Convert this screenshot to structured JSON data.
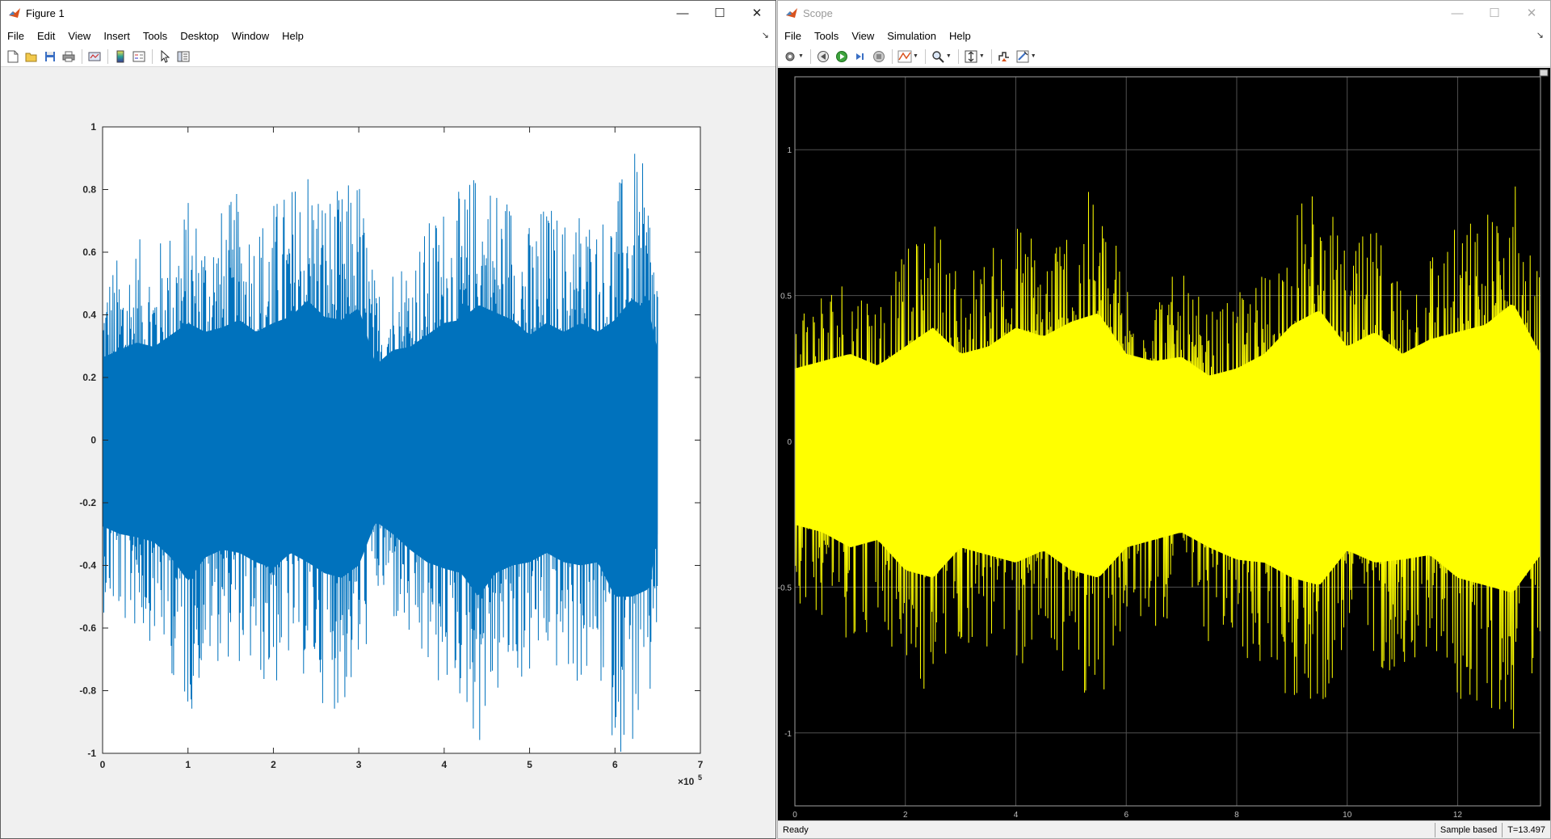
{
  "figure_window": {
    "title": "Figure 1",
    "menu": [
      "File",
      "Edit",
      "View",
      "Insert",
      "Tools",
      "Desktop",
      "Window",
      "Help"
    ],
    "toolbar_icons": [
      "new-figure-icon",
      "open-file-icon",
      "save-icon",
      "print-icon",
      "link-plot-icon",
      "colorbar-icon",
      "legend-icon",
      "edit-plot-icon",
      "property-inspector-icon"
    ],
    "controls": {
      "minimize": "—",
      "maximize": "☐",
      "close": "✕"
    }
  },
  "scope_window": {
    "title": "Scope",
    "menu": [
      "File",
      "Tools",
      "View",
      "Simulation",
      "Help"
    ],
    "toolbar_icons": [
      "settings-icon",
      "step-back-icon",
      "run-icon",
      "step-forward-icon",
      "stop-icon",
      "highlight-icon",
      "zoom-icon",
      "scale-axes-icon",
      "triggers-icon",
      "measurements-icon"
    ],
    "controls": {
      "minimize": "—",
      "maximize": "☐",
      "close": "✕"
    },
    "status": {
      "ready": "Ready",
      "mode": "Sample based",
      "time": "T=13.497"
    }
  },
  "chart_data": [
    {
      "type": "line",
      "title": "",
      "xlabel": "",
      "ylabel": "",
      "xlim": [
        0,
        7
      ],
      "ylim": [
        -1,
        1
      ],
      "x_exponent_label": "×10",
      "x_exponent": "5",
      "xticks": [
        "0",
        "1",
        "2",
        "3",
        "4",
        "5",
        "6",
        "7"
      ],
      "yticks": [
        "1",
        "0.8",
        "0.6",
        "0.4",
        "0.2",
        "0",
        "-0.2",
        "-0.4",
        "-0.6",
        "-0.8",
        "-1"
      ],
      "series": [
        {
          "color": "#0072bd",
          "x_range": [
            0,
            6.5
          ],
          "description_of_envelope": "dense noise"
        }
      ],
      "envelope": {
        "x": [
          0,
          0.2,
          0.4,
          0.6,
          0.8,
          1.0,
          1.2,
          1.4,
          1.6,
          1.8,
          2.0,
          2.2,
          2.4,
          2.6,
          2.8,
          3.0,
          3.2,
          3.4,
          3.6,
          3.8,
          4.0,
          4.2,
          4.4,
          4.6,
          4.8,
          5.0,
          5.2,
          5.4,
          5.6,
          5.8,
          6.0,
          6.2,
          6.4,
          6.5
        ],
        "upper": [
          0.55,
          0.6,
          0.65,
          0.62,
          0.7,
          0.78,
          0.72,
          0.75,
          0.8,
          0.72,
          0.78,
          0.82,
          0.93,
          0.82,
          0.8,
          0.88,
          0.5,
          0.6,
          0.62,
          0.7,
          0.78,
          0.8,
          0.9,
          0.85,
          0.8,
          0.7,
          0.78,
          0.72,
          0.78,
          0.72,
          0.8,
          0.94,
          0.85,
          0.6
        ],
        "lower": [
          -0.55,
          -0.6,
          -0.62,
          -0.65,
          -0.75,
          -0.9,
          -0.75,
          -0.7,
          -0.72,
          -0.78,
          -0.82,
          -0.72,
          -0.78,
          -0.85,
          -0.88,
          -0.8,
          -0.52,
          -0.6,
          -0.7,
          -0.78,
          -0.82,
          -0.85,
          -1.0,
          -0.85,
          -0.8,
          -0.78,
          -0.72,
          -0.78,
          -0.8,
          -0.78,
          -1.0,
          -1.0,
          -0.95,
          -0.6
        ]
      },
      "grid": false
    },
    {
      "type": "line",
      "title": "",
      "xlabel": "",
      "ylabel": "",
      "xlim": [
        0,
        13.5
      ],
      "ylim": [
        -1.25,
        1.25
      ],
      "xticks": [
        "0",
        "2",
        "4",
        "6",
        "8",
        "10",
        "12"
      ],
      "yticks": [
        "1",
        "0.5",
        "0",
        "-0.5",
        "-1"
      ],
      "series": [
        {
          "color": "#ffff00"
        }
      ],
      "envelope": {
        "x": [
          0,
          0.5,
          1,
          1.5,
          2,
          2.5,
          3,
          3.5,
          4,
          4.5,
          5,
          5.5,
          6,
          6.5,
          7,
          7.5,
          8,
          8.5,
          9,
          9.5,
          10,
          10.5,
          11,
          11.5,
          12,
          12.5,
          13,
          13.5
        ],
        "upper": [
          0.5,
          0.55,
          0.6,
          0.52,
          0.65,
          0.78,
          0.6,
          0.65,
          0.78,
          0.72,
          0.82,
          0.88,
          0.6,
          0.55,
          0.58,
          0.45,
          0.5,
          0.6,
          0.8,
          0.9,
          0.65,
          0.75,
          0.6,
          0.7,
          0.75,
          0.8,
          0.95,
          0.6
        ],
        "lower": [
          -0.55,
          -0.6,
          -0.7,
          -0.65,
          -0.85,
          -0.9,
          -0.7,
          -0.75,
          -0.8,
          -0.72,
          -0.85,
          -0.9,
          -0.7,
          -0.65,
          -0.6,
          -0.7,
          -0.78,
          -0.8,
          -0.9,
          -0.95,
          -0.72,
          -0.8,
          -0.78,
          -0.75,
          -0.9,
          -0.95,
          -1.0,
          -0.75
        ]
      },
      "background": "#000000",
      "grid": true
    }
  ]
}
